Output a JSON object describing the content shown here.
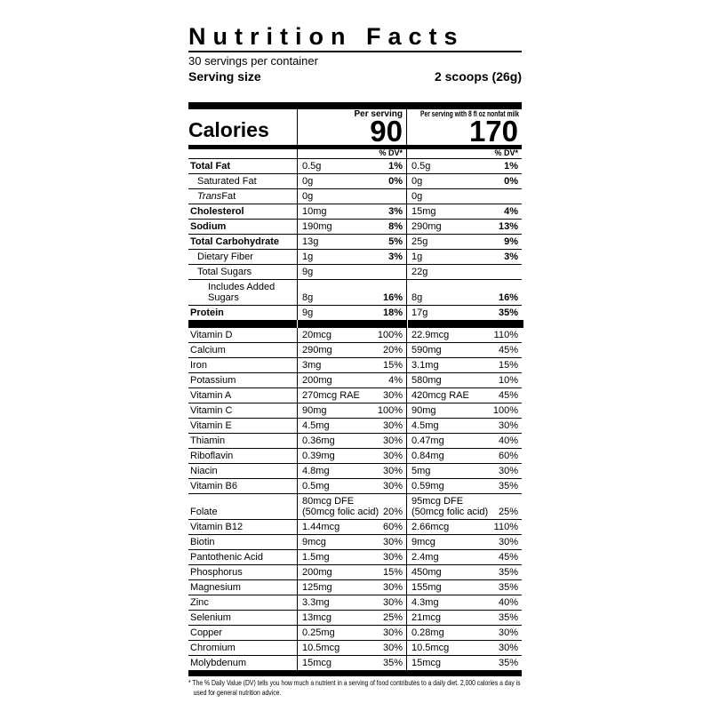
{
  "header": {
    "title": "Nutrition Facts",
    "servings_per_container": "30 servings per container",
    "serving_size_label": "Serving size",
    "serving_size_value": "2 scoops (26g)"
  },
  "calories": {
    "label": "Calories",
    "per_serving_header": "Per serving",
    "per_serving_value": "90",
    "with_milk_header": "Per serving with 8 fl oz nonfat milk",
    "with_milk_value": "170",
    "dv_header": "% DV*"
  },
  "table": {
    "rows": [
      {
        "name": "Total Fat",
        "bold": true,
        "indent": 0,
        "serving": {
          "amount": "0.5g",
          "dv": "1%"
        },
        "milk": {
          "amount": "0.5g",
          "dv": "1%"
        }
      },
      {
        "name": "Saturated Fat",
        "bold": false,
        "indent": 1,
        "serving": {
          "amount": "0g",
          "dv": "0%"
        },
        "milk": {
          "amount": "0g",
          "dv": "0%"
        }
      },
      {
        "name": "Trans Fat",
        "bold": false,
        "indent": 1,
        "first_word_italic": true,
        "serving": {
          "amount": "0g",
          "dv": ""
        },
        "milk": {
          "amount": "0g",
          "dv": ""
        }
      },
      {
        "name": "Cholesterol",
        "bold": true,
        "indent": 0,
        "serving": {
          "amount": "10mg",
          "dv": "3%"
        },
        "milk": {
          "amount": "15mg",
          "dv": "4%"
        }
      },
      {
        "name": "Sodium",
        "bold": true,
        "indent": 0,
        "serving": {
          "amount": "190mg",
          "dv": "8%"
        },
        "milk": {
          "amount": "290mg",
          "dv": "13%"
        }
      },
      {
        "name": "Total Carbohydrate",
        "bold": true,
        "indent": 0,
        "serving": {
          "amount": "13g",
          "dv": "5%"
        },
        "milk": {
          "amount": "25g",
          "dv": "9%"
        }
      },
      {
        "name": "Dietary Fiber",
        "bold": false,
        "indent": 1,
        "serving": {
          "amount": "1g",
          "dv": "3%"
        },
        "milk": {
          "amount": "1g",
          "dv": "3%"
        }
      },
      {
        "name": "Total Sugars",
        "bold": false,
        "indent": 1,
        "serving": {
          "amount": "9g",
          "dv": ""
        },
        "milk": {
          "amount": "22g",
          "dv": ""
        }
      },
      {
        "name": "Includes Added Sugars",
        "bold": false,
        "indent": 2,
        "serving": {
          "amount": "8g",
          "dv": "16%"
        },
        "milk": {
          "amount": "8g",
          "dv": "16%"
        }
      },
      {
        "name": "Protein",
        "bold": true,
        "indent": 0,
        "serving": {
          "amount": "9g",
          "dv": "18%"
        },
        "milk": {
          "amount": "17g",
          "dv": "35%"
        }
      },
      {
        "type": "divider"
      },
      {
        "name": "Vitamin D",
        "bold": false,
        "indent": 0,
        "serving": {
          "amount": "20mcg",
          "dv": "100%"
        },
        "milk": {
          "amount": "22.9mcg",
          "dv": "110%"
        }
      },
      {
        "name": "Calcium",
        "bold": false,
        "indent": 0,
        "serving": {
          "amount": "290mg",
          "dv": "20%"
        },
        "milk": {
          "amount": "590mg",
          "dv": "45%"
        }
      },
      {
        "name": "Iron",
        "bold": false,
        "indent": 0,
        "serving": {
          "amount": "3mg",
          "dv": "15%"
        },
        "milk": {
          "amount": "3.1mg",
          "dv": "15%"
        }
      },
      {
        "name": "Potassium",
        "bold": false,
        "indent": 0,
        "serving": {
          "amount": "200mg",
          "dv": "4%"
        },
        "milk": {
          "amount": "580mg",
          "dv": "10%"
        }
      },
      {
        "name": "Vitamin A",
        "bold": false,
        "indent": 0,
        "serving": {
          "amount": "270mcg RAE",
          "dv": "30%"
        },
        "milk": {
          "amount": "420mcg RAE",
          "dv": "45%"
        }
      },
      {
        "name": "Vitamin C",
        "bold": false,
        "indent": 0,
        "serving": {
          "amount": "90mg",
          "dv": "100%"
        },
        "milk": {
          "amount": "90mg",
          "dv": "100%"
        }
      },
      {
        "name": "Vitamin E",
        "bold": false,
        "indent": 0,
        "serving": {
          "amount": "4.5mg",
          "dv": "30%"
        },
        "milk": {
          "amount": "4.5mg",
          "dv": "30%"
        }
      },
      {
        "name": "Thiamin",
        "bold": false,
        "indent": 0,
        "serving": {
          "amount": "0.36mg",
          "dv": "30%"
        },
        "milk": {
          "amount": "0.47mg",
          "dv": "40%"
        }
      },
      {
        "name": "Riboflavin",
        "bold": false,
        "indent": 0,
        "serving": {
          "amount": "0.39mg",
          "dv": "30%"
        },
        "milk": {
          "amount": "0.84mg",
          "dv": "60%"
        }
      },
      {
        "name": "Niacin",
        "bold": false,
        "indent": 0,
        "serving": {
          "amount": "4.8mg",
          "dv": "30%"
        },
        "milk": {
          "amount": "5mg",
          "dv": "30%"
        }
      },
      {
        "name": "Vitamin B6",
        "bold": false,
        "indent": 0,
        "serving": {
          "amount": "0.5mg",
          "dv": "30%"
        },
        "milk": {
          "amount": "0.59mg",
          "dv": "35%"
        }
      },
      {
        "name": "Folate",
        "bold": false,
        "indent": 0,
        "serving": {
          "amount": "80mcg DFE\n(50mcg folic acid)",
          "dv": "20%"
        },
        "milk": {
          "amount": "95mcg DFE\n(50mcg folic acid)",
          "dv": "25%"
        }
      },
      {
        "name": "Vitamin B12",
        "bold": false,
        "indent": 0,
        "serving": {
          "amount": "1.44mcg",
          "dv": "60%"
        },
        "milk": {
          "amount": "2.66mcg",
          "dv": "110%"
        }
      },
      {
        "name": "Biotin",
        "bold": false,
        "indent": 0,
        "serving": {
          "amount": "9mcg",
          "dv": "30%"
        },
        "milk": {
          "amount": "9mcg",
          "dv": "30%"
        }
      },
      {
        "name": "Pantothenic Acid",
        "bold": false,
        "indent": 0,
        "serving": {
          "amount": "1.5mg",
          "dv": "30%"
        },
        "milk": {
          "amount": "2.4mg",
          "dv": "45%"
        }
      },
      {
        "name": "Phosphorus",
        "bold": false,
        "indent": 0,
        "serving": {
          "amount": "200mg",
          "dv": "15%"
        },
        "milk": {
          "amount": "450mg",
          "dv": "35%"
        }
      },
      {
        "name": "Magnesium",
        "bold": false,
        "indent": 0,
        "serving": {
          "amount": "125mg",
          "dv": "30%"
        },
        "milk": {
          "amount": "155mg",
          "dv": "35%"
        }
      },
      {
        "name": "Zinc",
        "bold": false,
        "indent": 0,
        "serving": {
          "amount": "3.3mg",
          "dv": "30%"
        },
        "milk": {
          "amount": "4.3mg",
          "dv": "40%"
        }
      },
      {
        "name": "Selenium",
        "bold": false,
        "indent": 0,
        "serving": {
          "amount": "13mcg",
          "dv": "25%"
        },
        "milk": {
          "amount": "21mcg",
          "dv": "35%"
        }
      },
      {
        "name": "Copper",
        "bold": false,
        "indent": 0,
        "serving": {
          "amount": "0.25mg",
          "dv": "30%"
        },
        "milk": {
          "amount": "0.28mg",
          "dv": "30%"
        }
      },
      {
        "name": "Chromium",
        "bold": false,
        "indent": 0,
        "serving": {
          "amount": "10.5mcg",
          "dv": "30%"
        },
        "milk": {
          "amount": "10.5mcg",
          "dv": "30%"
        }
      },
      {
        "name": "Molybdenum",
        "bold": false,
        "indent": 0,
        "serving": {
          "amount": "15mcg",
          "dv": "35%"
        },
        "milk": {
          "amount": "15mcg",
          "dv": "35%"
        }
      }
    ]
  },
  "footnote": "* The % Daily Value (DV) tells you how much a nutrient in a serving of food contributes to a daily diet. 2,000 calories a day is used for general nutrition advice.",
  "colors": {
    "ink": "#000000",
    "background": "#ffffff"
  }
}
